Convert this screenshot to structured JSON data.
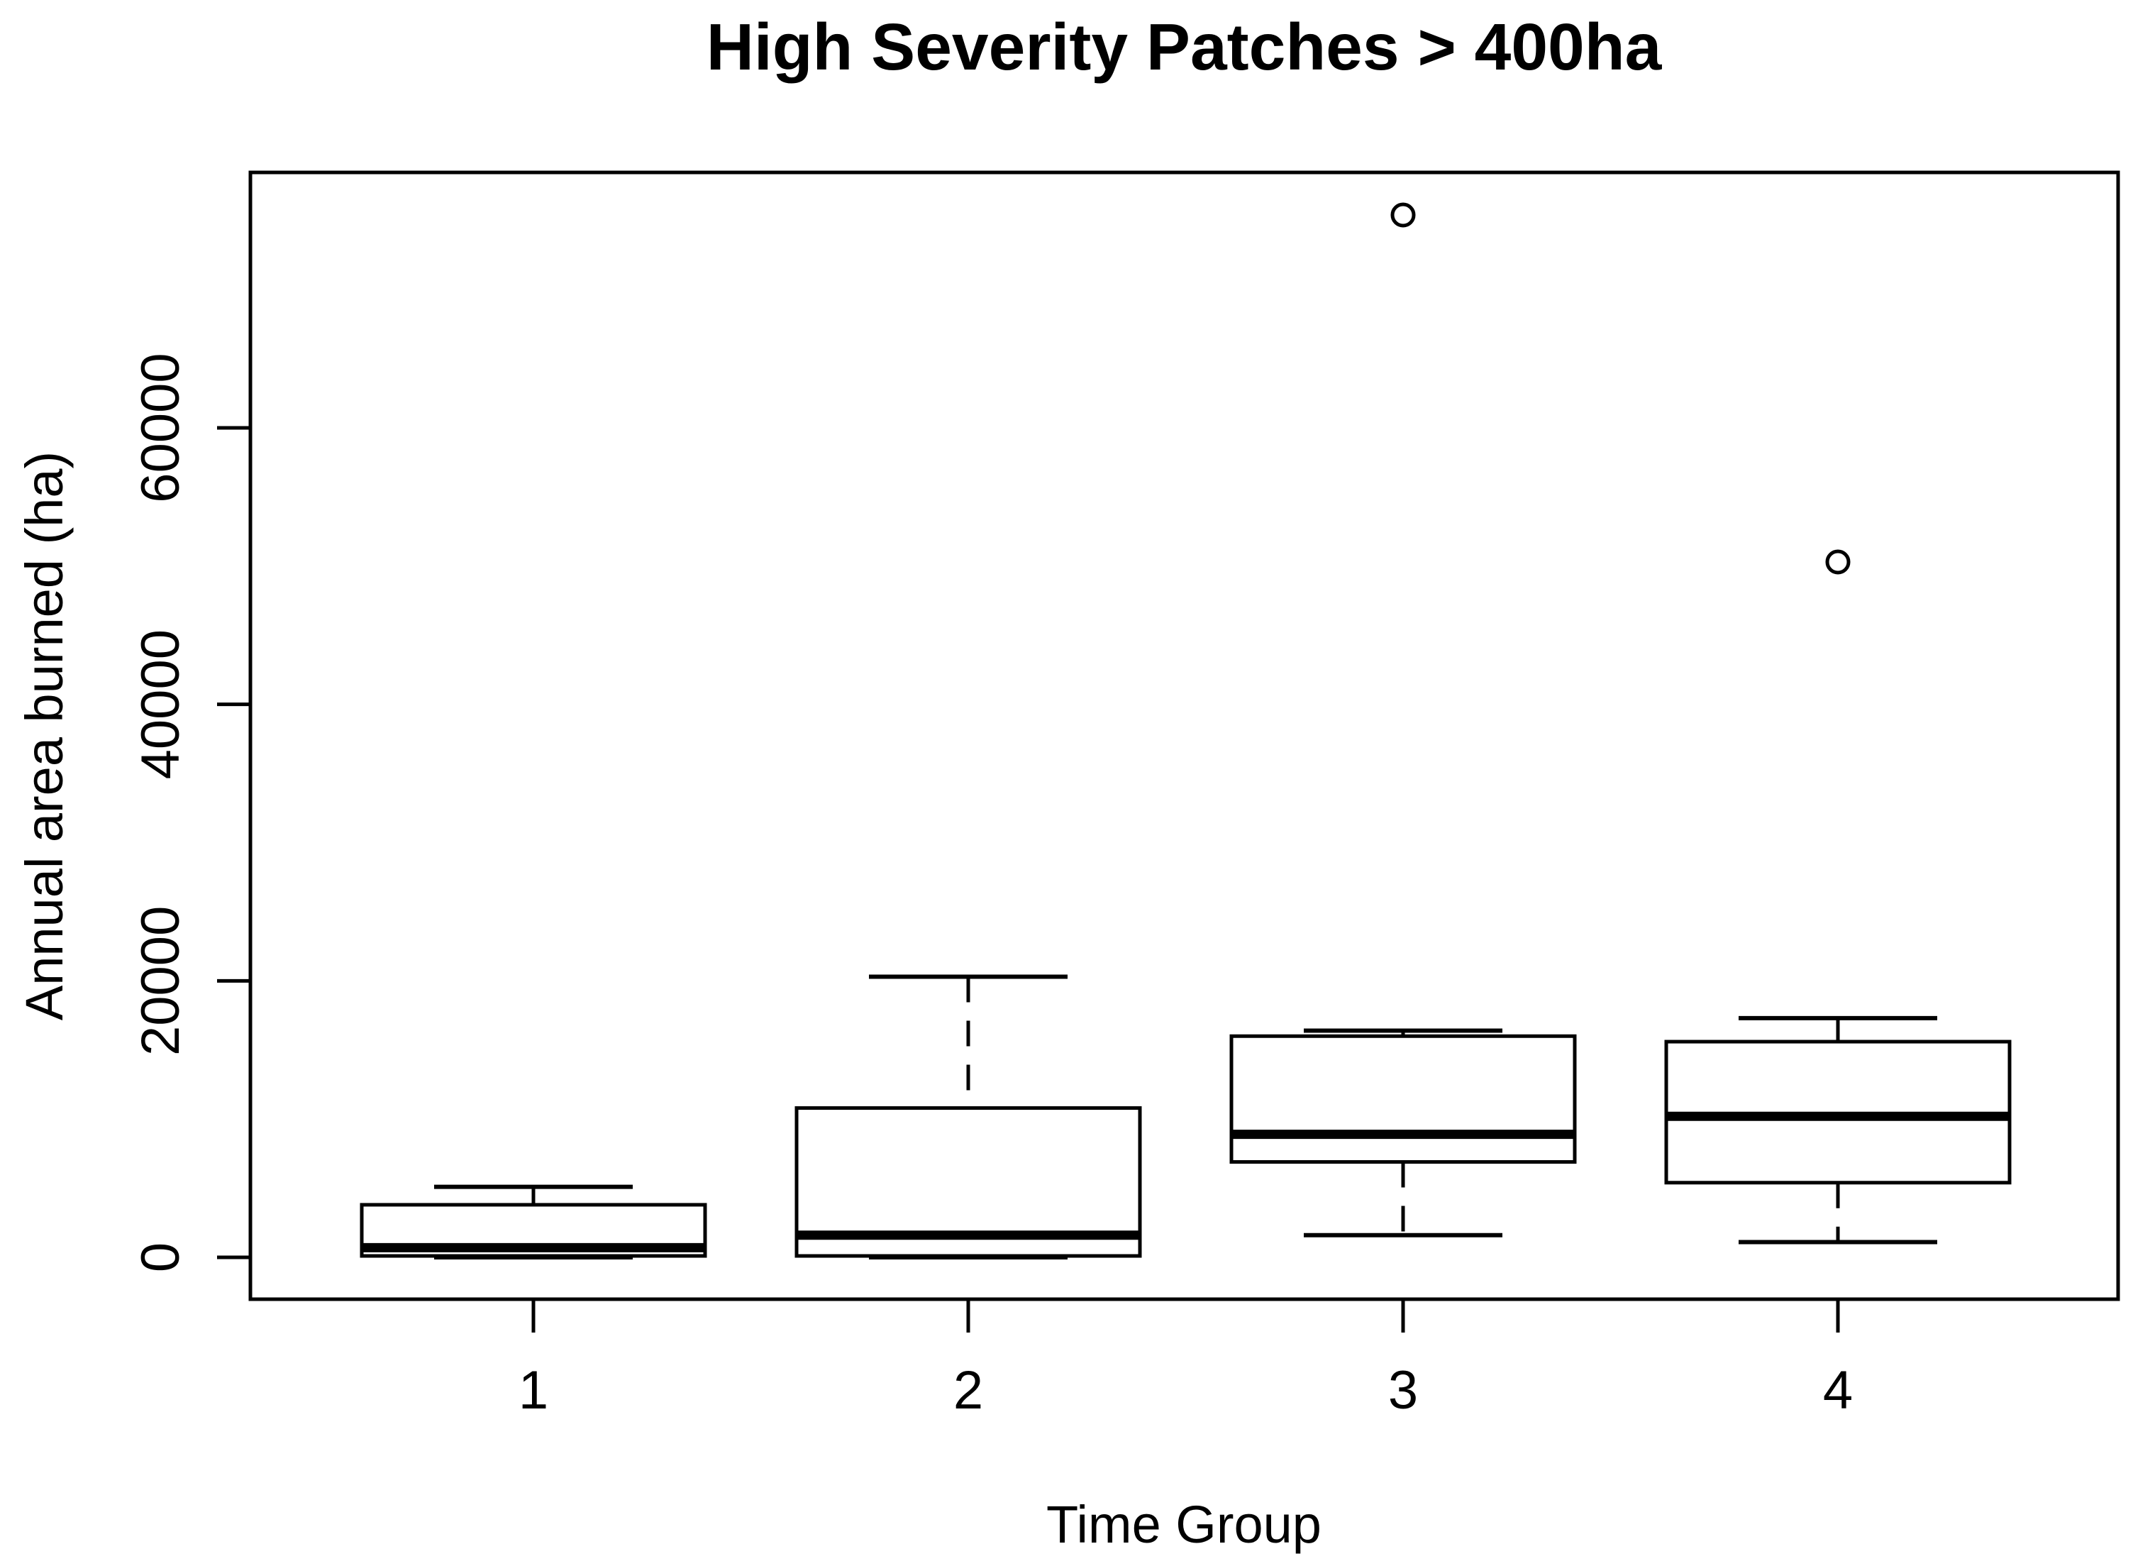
{
  "chart_data": {
    "type": "boxplot",
    "title": "High Severity Patches > 400ha",
    "xlabel": "Time Group",
    "ylabel": "Annual area burned (ha)",
    "categories": [
      "1",
      "2",
      "3",
      "4"
    ],
    "yticks": [
      0,
      20000,
      40000,
      60000
    ],
    "ytick_labels": [
      "0",
      "20000",
      "40000",
      "60000"
    ],
    "ylim": [
      -3030,
      78480
    ],
    "grid": false,
    "legend": "none",
    "box_fill": "#ffffff",
    "line_color": "#000000",
    "background": "#ffffff",
    "series": [
      {
        "group": "1",
        "whisker_low": 0,
        "q1": 100,
        "median": 700,
        "q3": 3800,
        "whisker_high": 5100,
        "outliers": []
      },
      {
        "group": "2",
        "whisker_low": 0,
        "q1": 100,
        "median": 1600,
        "q3": 10800,
        "whisker_high": 20300,
        "outliers": []
      },
      {
        "group": "3",
        "whisker_low": 1600,
        "q1": 6900,
        "median": 8900,
        "q3": 16000,
        "whisker_high": 16400,
        "outliers": [
          75400
        ]
      },
      {
        "group": "4",
        "whisker_low": 1100,
        "q1": 5400,
        "median": 10200,
        "q3": 15600,
        "whisker_high": 17300,
        "outliers": [
          50300
        ]
      }
    ]
  }
}
